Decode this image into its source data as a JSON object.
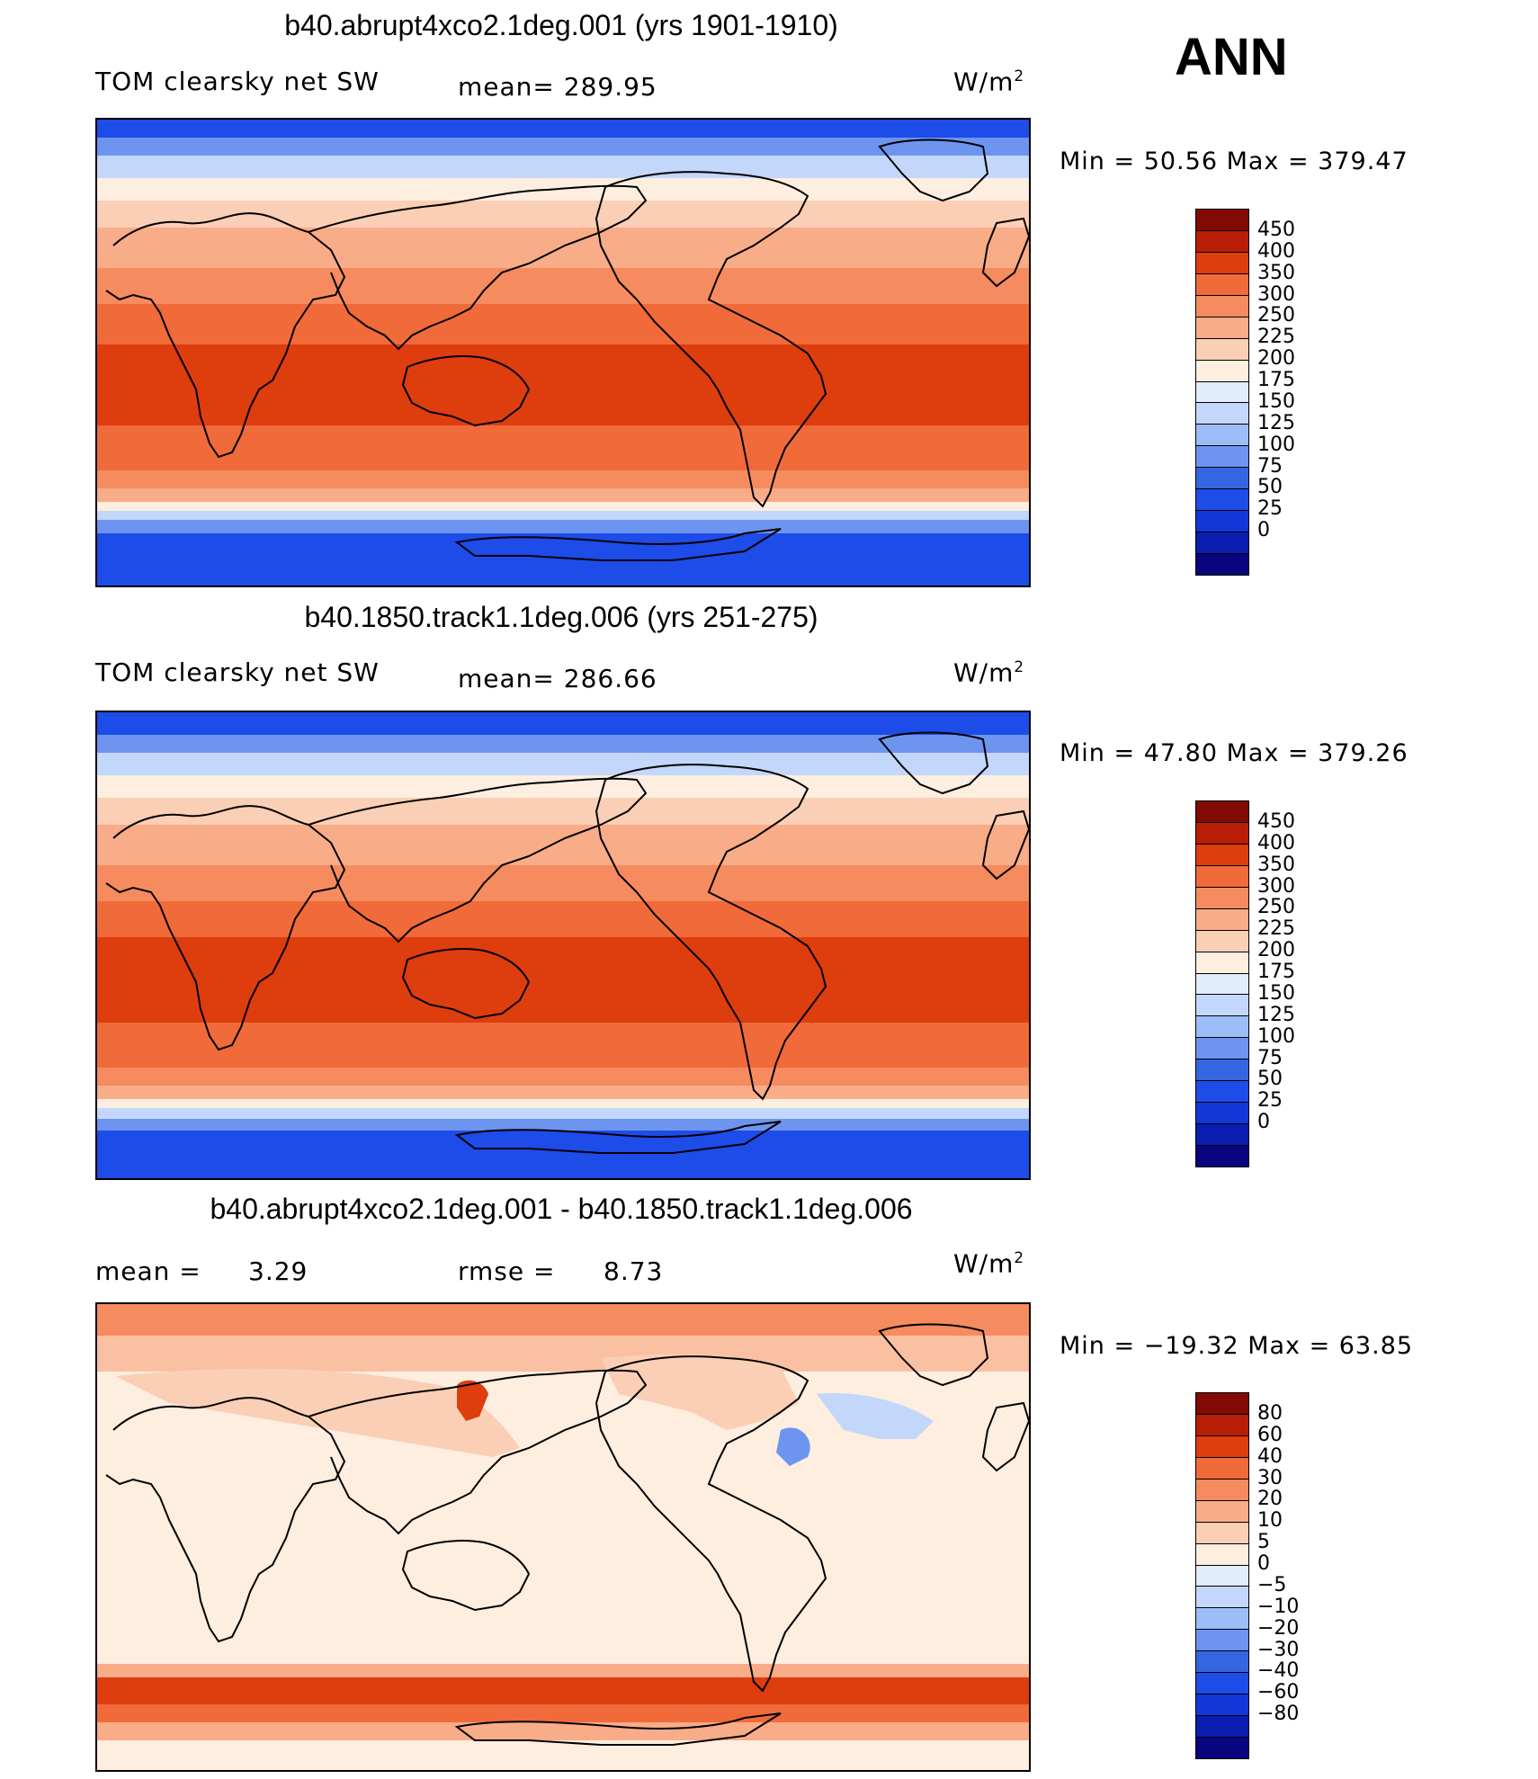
{
  "season_label": "ANN",
  "units_base": "W/m",
  "units_exp": "2",
  "colors": {
    "abs_palette": [
      "#08057f",
      "#0a1db0",
      "#1236d8",
      "#1d4ce8",
      "#3366e0",
      "#6d95f0",
      "#9dbdf8",
      "#c3d7fa",
      "#e1ecfb",
      "#fdeee0",
      "#fbcfb5",
      "#f8ac88",
      "#f58b5f",
      "#f06a3a",
      "#de3d0e",
      "#b81d05",
      "#820a04"
    ],
    "diff_palette": [
      "#08057f",
      "#0a1db0",
      "#1236d8",
      "#1d4ce8",
      "#3366e0",
      "#6d95f0",
      "#9dbdf8",
      "#c3d7fa",
      "#e1ecfb",
      "#fdeee0",
      "#fbcfb5",
      "#f8ac88",
      "#f58b5f",
      "#f06a3a",
      "#de3d0e",
      "#b81d05",
      "#820a04"
    ]
  },
  "panels": [
    {
      "title": "b40.abrupt4xco2.1deg.001 (yrs 1901-1910)",
      "variable": "TOM clearsky net SW",
      "mean_text": "mean= 289.95",
      "minmax_text": "Min =   50.56 Max = 379.47",
      "levels": [
        "450",
        "400",
        "350",
        "300",
        "250",
        "225",
        "200",
        "175",
        "150",
        "125",
        "100",
        "75",
        "50",
        "25",
        "0"
      ]
    },
    {
      "title": "b40.1850.track1.1deg.006 (yrs 251-275)",
      "variable": "TOM clearsky net SW",
      "mean_text": "mean= 286.66",
      "minmax_text": "Min =   47.80 Max = 379.26",
      "levels": [
        "450",
        "400",
        "350",
        "300",
        "250",
        "225",
        "200",
        "175",
        "150",
        "125",
        "100",
        "75",
        "50",
        "25",
        "0"
      ]
    },
    {
      "title": "b40.abrupt4xco2.1deg.001 - b40.1850.track1.1deg.006",
      "mean_label": "mean =",
      "mean_value": "3.29",
      "rmse_label": "rmse =",
      "rmse_value": "8.73",
      "minmax_text": "Min = −19.32 Max =   63.85",
      "levels": [
        "80",
        "60",
        "40",
        "30",
        "20",
        "10",
        "5",
        "0",
        "−5",
        "−10",
        "−20",
        "−30",
        "−40",
        "−60",
        "−80"
      ]
    }
  ]
}
